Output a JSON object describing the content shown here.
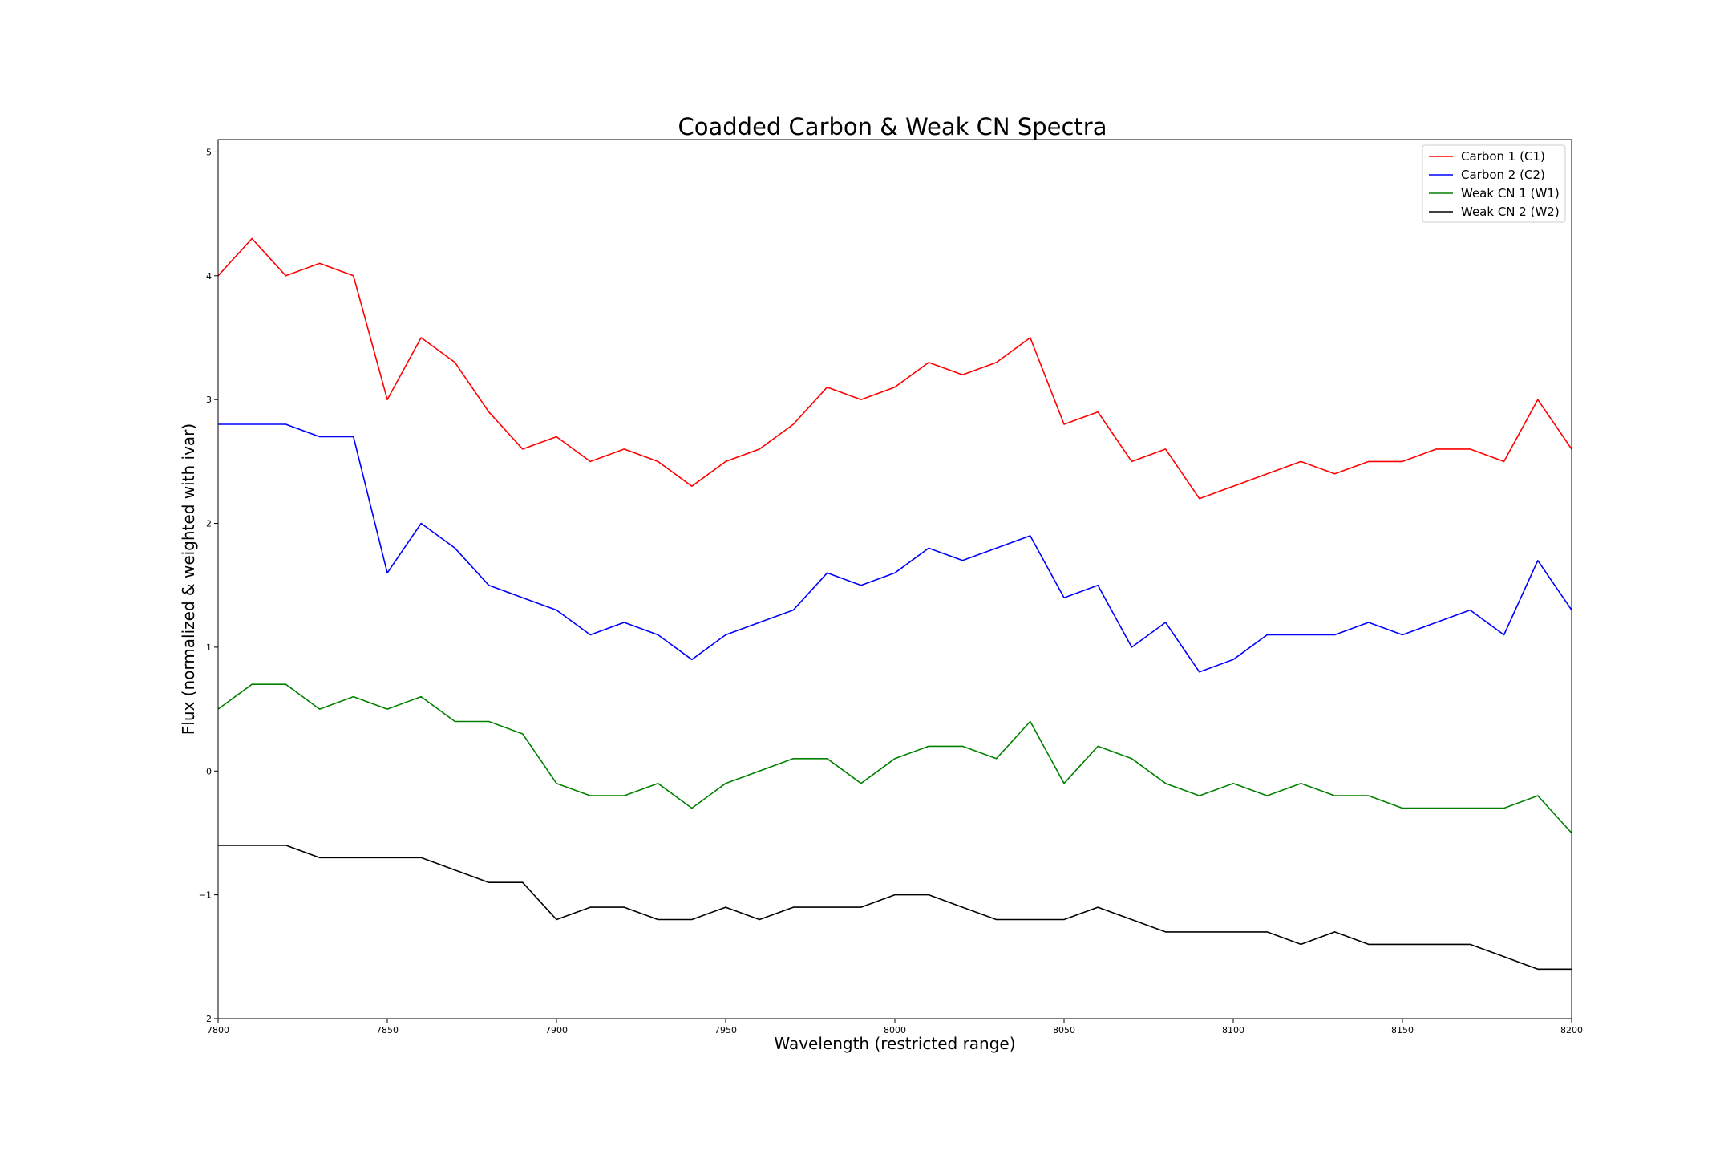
{
  "chart_data": {
    "type": "line",
    "title": "Coadded Carbon & Weak CN Spectra",
    "xlabel": "Wavelength (restricted range)",
    "ylabel": "Flux (normalized & weighted with ivar)",
    "xlim": [
      7800,
      8200
    ],
    "ylim": [
      -2,
      5.1
    ],
    "xticks": [
      7800,
      7850,
      7900,
      7950,
      8000,
      8050,
      8100,
      8150,
      8200
    ],
    "yticks": [
      -2,
      -1,
      0,
      1,
      2,
      3,
      4,
      5
    ],
    "ytick_labels": [
      "−2",
      "−1",
      "0",
      "1",
      "2",
      "3",
      "4",
      "5"
    ],
    "grid": false,
    "legend_position": "top-right",
    "x": [
      7800,
      7810,
      7820,
      7830,
      7840,
      7850,
      7860,
      7870,
      7880,
      7890,
      7900,
      7910,
      7920,
      7930,
      7940,
      7950,
      7960,
      7970,
      7980,
      7990,
      8000,
      8010,
      8020,
      8030,
      8040,
      8050,
      8060,
      8070,
      8080,
      8090,
      8100,
      8110,
      8120,
      8130,
      8140,
      8150,
      8160,
      8170,
      8180,
      8190,
      8200
    ],
    "series": [
      {
        "name": "Carbon 1 (C1)",
        "color": "#ff0000",
        "values": [
          4.0,
          4.3,
          4.0,
          4.1,
          4.0,
          3.0,
          3.5,
          3.3,
          2.9,
          2.6,
          2.7,
          2.5,
          2.6,
          2.5,
          2.3,
          2.5,
          2.6,
          2.8,
          3.1,
          3.0,
          3.1,
          3.3,
          3.2,
          3.3,
          3.5,
          2.8,
          2.9,
          2.5,
          2.6,
          2.2,
          2.3,
          2.4,
          2.5,
          2.4,
          2.5,
          2.5,
          2.6,
          2.6,
          2.5,
          3.0,
          2.6
        ]
      },
      {
        "name": "Carbon 2 (C2)",
        "color": "#0000ff",
        "values": [
          2.8,
          2.8,
          2.8,
          2.7,
          2.7,
          1.6,
          2.0,
          1.8,
          1.5,
          1.4,
          1.3,
          1.1,
          1.2,
          1.1,
          0.9,
          1.1,
          1.2,
          1.3,
          1.6,
          1.5,
          1.6,
          1.8,
          1.7,
          1.8,
          1.9,
          1.4,
          1.5,
          1.0,
          1.2,
          0.8,
          0.9,
          1.1,
          1.1,
          1.1,
          1.2,
          1.1,
          1.2,
          1.3,
          1.1,
          1.7,
          1.3
        ]
      },
      {
        "name": "Weak CN 1 (W1)",
        "color": "#008000",
        "values": [
          0.5,
          0.7,
          0.7,
          0.5,
          0.6,
          0.5,
          0.6,
          0.4,
          0.4,
          0.3,
          -0.1,
          -0.2,
          -0.2,
          -0.1,
          -0.3,
          -0.1,
          0.0,
          0.1,
          0.1,
          -0.1,
          0.1,
          0.2,
          0.2,
          0.1,
          0.4,
          -0.1,
          0.2,
          0.1,
          -0.1,
          -0.2,
          -0.1,
          -0.2,
          -0.1,
          -0.2,
          -0.2,
          -0.3,
          -0.3,
          -0.3,
          -0.3,
          -0.2,
          -0.5
        ]
      },
      {
        "name": "Weak CN 2 (W2)",
        "color": "#000000",
        "values": [
          -0.6,
          -0.6,
          -0.6,
          -0.7,
          -0.7,
          -0.7,
          -0.7,
          -0.8,
          -0.9,
          -0.9,
          -1.2,
          -1.1,
          -1.1,
          -1.2,
          -1.2,
          -1.1,
          -1.2,
          -1.1,
          -1.1,
          -1.1,
          -1.0,
          -1.0,
          -1.1,
          -1.2,
          -1.2,
          -1.2,
          -1.1,
          -1.2,
          -1.3,
          -1.3,
          -1.3,
          -1.3,
          -1.4,
          -1.3,
          -1.4,
          -1.4,
          -1.4,
          -1.4,
          -1.5,
          -1.6,
          -1.6
        ]
      }
    ]
  }
}
